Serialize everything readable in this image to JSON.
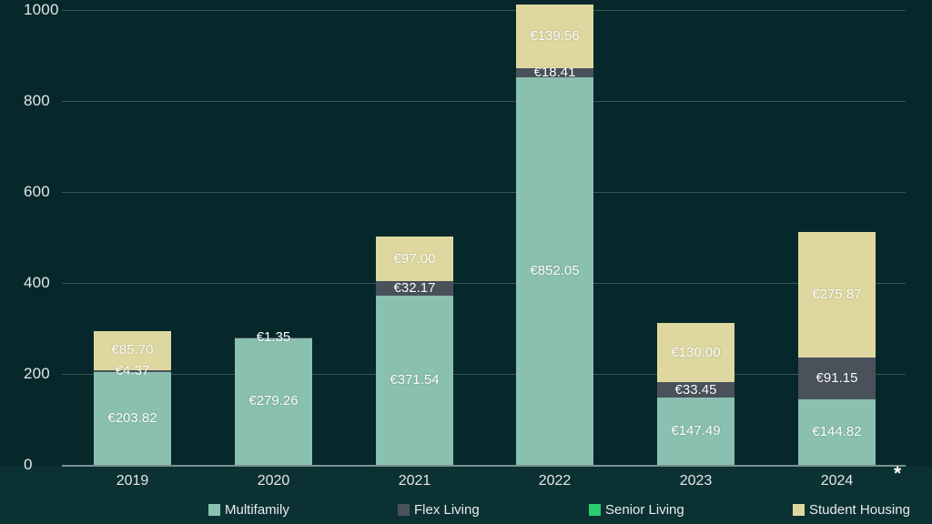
{
  "chart_data": {
    "type": "bar",
    "stacked": true,
    "title": "",
    "xlabel": "",
    "ylabel": "",
    "categories": [
      "2019",
      "2020",
      "2021",
      "2022",
      "2023",
      "2024"
    ],
    "series": [
      {
        "name": "Multifamily",
        "color": "#8ac0af",
        "values": [
          203.82,
          279.26,
          371.54,
          852.05,
          147.49,
          144.82
        ],
        "labels": [
          "€203.82",
          "€279.26",
          "€371.54",
          "€852.05",
          "€147.49",
          "€144.82"
        ]
      },
      {
        "name": "Flex Living",
        "color": "#49525a",
        "values": [
          4.37,
          1.35,
          32.17,
          18.41,
          33.45,
          91.15
        ],
        "labels": [
          "€4.37",
          "€1.35",
          "€32.17",
          "€18.41",
          "€33.45",
          "€91.15"
        ]
      },
      {
        "name": "Senior Living",
        "color": "#27cd6e",
        "values": [
          0,
          0,
          0,
          0,
          0,
          0
        ],
        "labels": [
          "",
          "",
          "",
          "",
          "",
          ""
        ]
      },
      {
        "name": "Student Housing",
        "color": "#ded8a0",
        "values": [
          85.7,
          0,
          97.0,
          139.56,
          130.0,
          275.87
        ],
        "labels": [
          "€85.70",
          "",
          "€97.00",
          "€139.56",
          "€130.00",
          "€275.87"
        ]
      }
    ],
    "ylim": [
      0,
      1000
    ],
    "y_ticks": [
      0,
      200,
      400,
      600,
      800,
      1000
    ],
    "y_tick_labels": [
      "0",
      "200",
      "400",
      "600",
      "800",
      "1000"
    ],
    "grid": "horizontal",
    "legend_position": "bottom",
    "footnote_marker": "*",
    "colors": {
      "background_plot": "#07282b",
      "background_axis_band": "#0c3133",
      "gridline": "rgba(185,200,200,0.28)",
      "axis_line": "rgba(200,212,212,0.6)",
      "value_label_text": "#fdfdfd",
      "tick_label_text": "#e2e6e6",
      "legend_text": "#e9ebeb"
    }
  }
}
